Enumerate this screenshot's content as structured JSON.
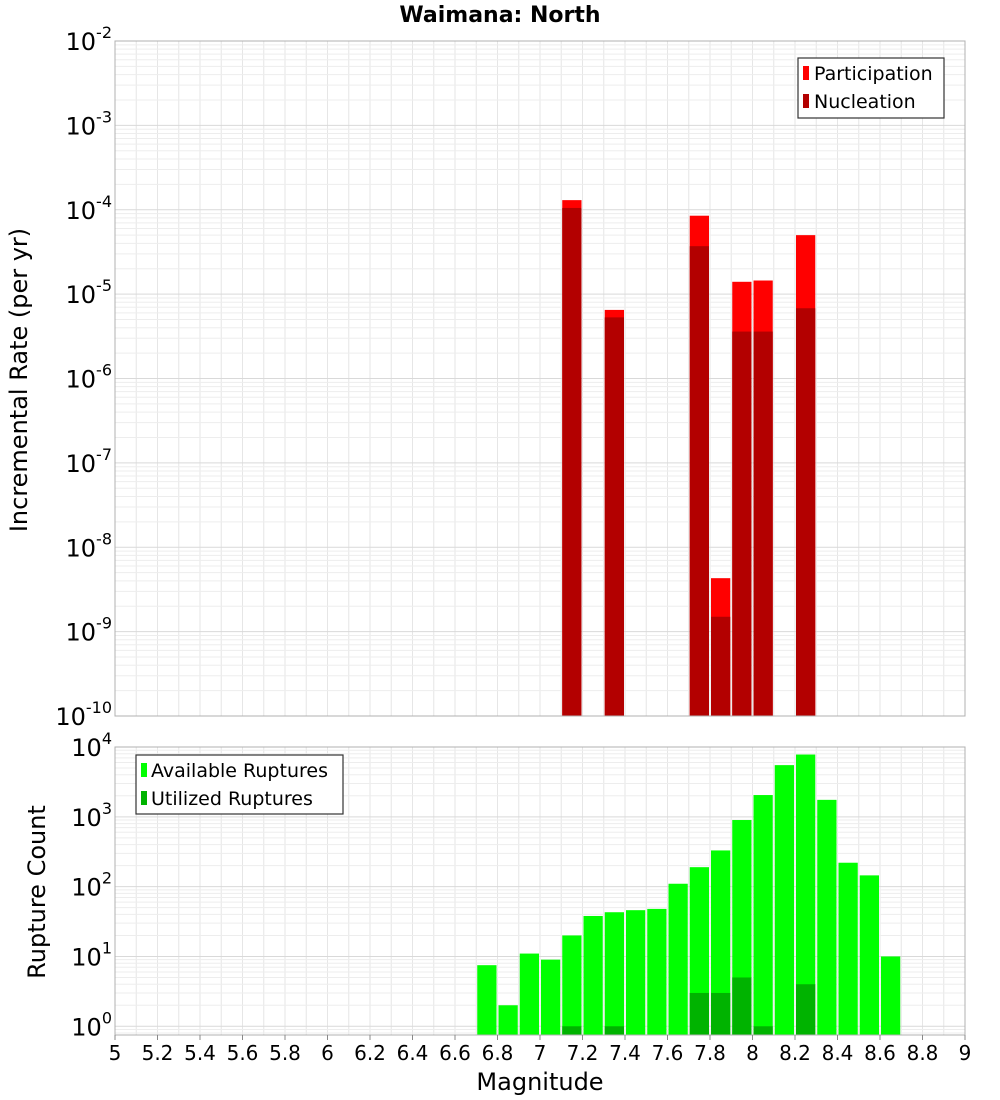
{
  "chart_data": [
    {
      "type": "bar",
      "title": "Waimana: North",
      "xlabel": "Magnitude",
      "ylabel": "Incremental Rate (per yr)",
      "y_scale": "log",
      "xlim": [
        5,
        9
      ],
      "ylim": [
        1e-10,
        0.01
      ],
      "bin_width": 0.1,
      "y_tick_labels": [
        {
          "base": "10",
          "exp": "-10"
        },
        {
          "base": "10",
          "exp": "-9"
        },
        {
          "base": "10",
          "exp": "-8"
        },
        {
          "base": "10",
          "exp": "-7"
        },
        {
          "base": "10",
          "exp": "-6"
        },
        {
          "base": "10",
          "exp": "-5"
        },
        {
          "base": "10",
          "exp": "-4"
        },
        {
          "base": "10",
          "exp": "-3"
        },
        {
          "base": "10",
          "exp": "-2"
        }
      ],
      "grid": true,
      "legend_position": "top-right",
      "series": [
        {
          "name": "Participation",
          "color": "#ff0000",
          "points": [
            {
              "x": 7.15,
              "y": 0.00013
            },
            {
              "x": 7.35,
              "y": 6.5e-06
            },
            {
              "x": 7.75,
              "y": 8.5e-05
            },
            {
              "x": 7.85,
              "y": 4.3e-09
            },
            {
              "x": 7.95,
              "y": 1.4e-05
            },
            {
              "x": 8.05,
              "y": 1.45e-05
            },
            {
              "x": 8.25,
              "y": 5e-05
            }
          ]
        },
        {
          "name": "Nucleation",
          "color": "#b30000",
          "points": [
            {
              "x": 7.15,
              "y": 0.000105
            },
            {
              "x": 7.35,
              "y": 5.3e-06
            },
            {
              "x": 7.75,
              "y": 3.7e-05
            },
            {
              "x": 7.85,
              "y": 1.5e-09
            },
            {
              "x": 7.95,
              "y": 3.6e-06
            },
            {
              "x": 8.05,
              "y": 3.6e-06
            },
            {
              "x": 8.25,
              "y": 6.8e-06
            }
          ]
        }
      ]
    },
    {
      "type": "bar",
      "xlabel": "Magnitude",
      "ylabel": "Rupture Count",
      "y_scale": "log",
      "xlim": [
        5,
        9
      ],
      "ylim": [
        0.75,
        10000
      ],
      "bin_width": 0.1,
      "x_tick_labels": [
        "5",
        "5.2",
        "5.4",
        "5.6",
        "5.8",
        "6",
        "6.2",
        "6.4",
        "6.6",
        "6.8",
        "7",
        "7.2",
        "7.4",
        "7.6",
        "7.8",
        "8",
        "8.2",
        "8.4",
        "8.6",
        "8.8",
        "9"
      ],
      "y_tick_labels": [
        {
          "base": "10",
          "exp": "0"
        },
        {
          "base": "10",
          "exp": "1"
        },
        {
          "base": "10",
          "exp": "2"
        },
        {
          "base": "10",
          "exp": "3"
        },
        {
          "base": "10",
          "exp": "4"
        }
      ],
      "grid": true,
      "legend_position": "top-left",
      "series": [
        {
          "name": "Available Ruptures",
          "color": "#00ff00",
          "points": [
            {
              "x": 6.75,
              "y": 7.5
            },
            {
              "x": 6.85,
              "y": 2
            },
            {
              "x": 6.95,
              "y": 11
            },
            {
              "x": 7.05,
              "y": 9
            },
            {
              "x": 7.15,
              "y": 20
            },
            {
              "x": 7.25,
              "y": 38
            },
            {
              "x": 7.35,
              "y": 43
            },
            {
              "x": 7.45,
              "y": 46
            },
            {
              "x": 7.55,
              "y": 48
            },
            {
              "x": 7.65,
              "y": 110
            },
            {
              "x": 7.75,
              "y": 190
            },
            {
              "x": 7.85,
              "y": 330
            },
            {
              "x": 7.95,
              "y": 900
            },
            {
              "x": 8.05,
              "y": 2050
            },
            {
              "x": 8.15,
              "y": 5500
            },
            {
              "x": 8.25,
              "y": 7800
            },
            {
              "x": 8.35,
              "y": 1750
            },
            {
              "x": 8.45,
              "y": 220
            },
            {
              "x": 8.55,
              "y": 145
            },
            {
              "x": 8.65,
              "y": 10
            }
          ]
        },
        {
          "name": "Utilized Ruptures",
          "color": "#00b300",
          "points": [
            {
              "x": 7.15,
              "y": 1
            },
            {
              "x": 7.35,
              "y": 1
            },
            {
              "x": 7.75,
              "y": 3
            },
            {
              "x": 7.85,
              "y": 3
            },
            {
              "x": 7.95,
              "y": 5
            },
            {
              "x": 8.05,
              "y": 1
            },
            {
              "x": 8.25,
              "y": 4
            }
          ]
        }
      ]
    }
  ]
}
